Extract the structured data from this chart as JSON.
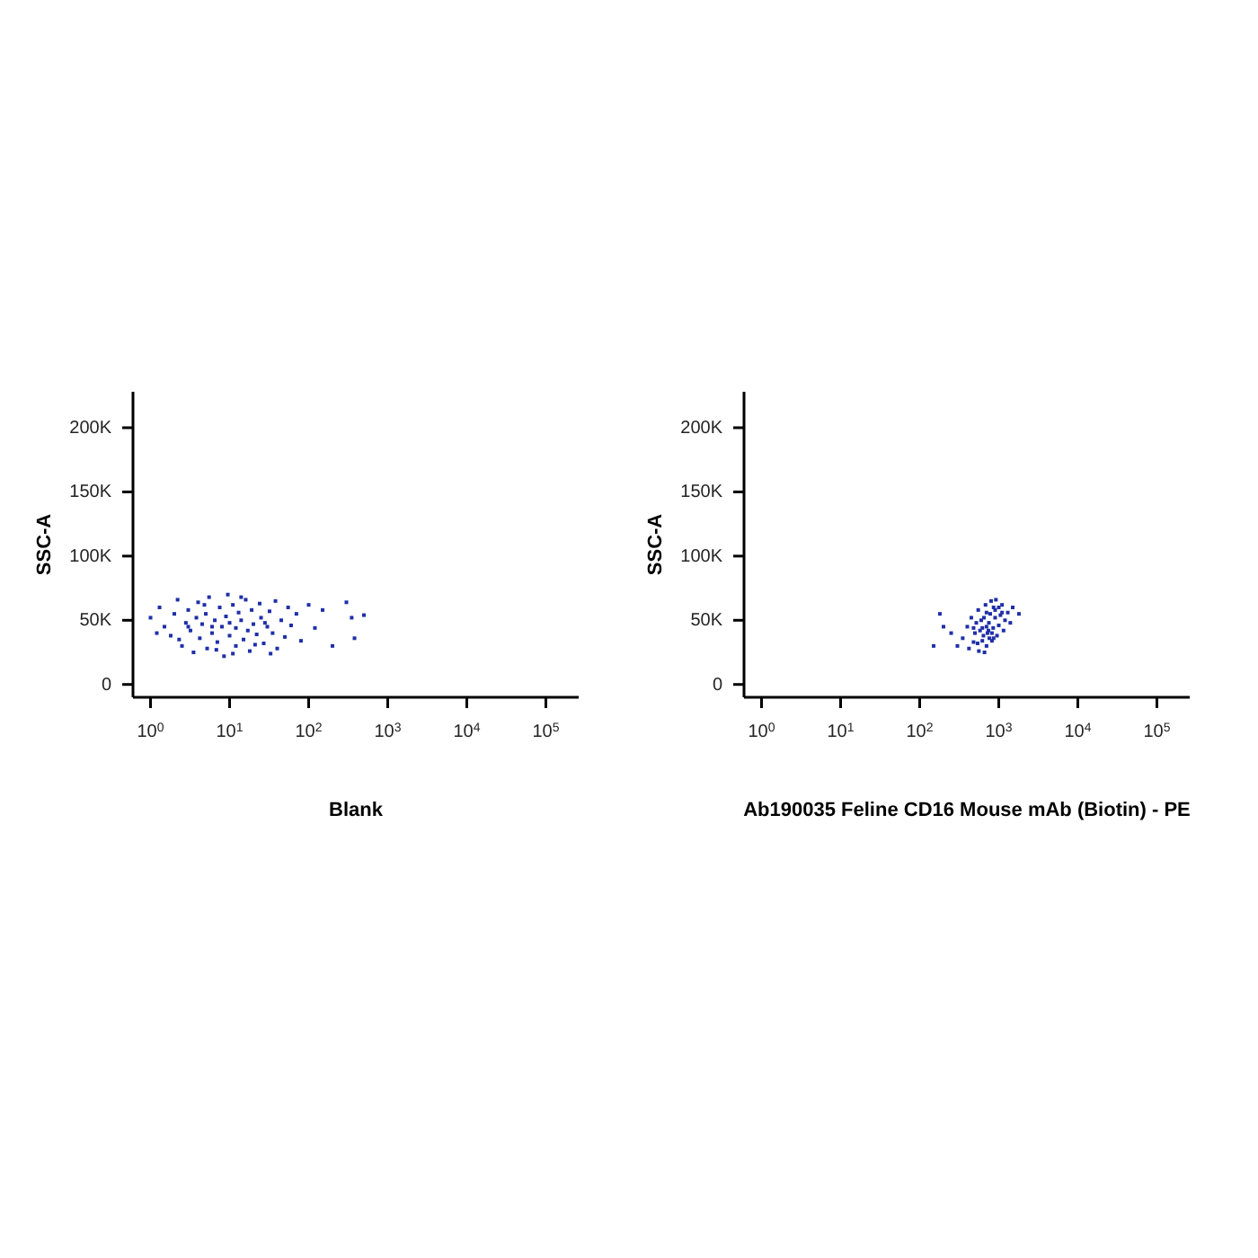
{
  "chart_data": [
    {
      "type": "scatter",
      "xlabel": "Blank",
      "ylabel": "SSC-A",
      "log": "x",
      "marker": "square",
      "xlim": [
        0.6,
        260000
      ],
      "ylim": [
        -10000,
        228000
      ],
      "xticks": [
        {
          "value": 1,
          "label": "10$^{0}$"
        },
        {
          "value": 10,
          "label": "10$^{1}$"
        },
        {
          "value": 100,
          "label": "10$^{2}$"
        },
        {
          "value": 1000,
          "label": "10$^{3}$"
        },
        {
          "value": 10000,
          "label": "10$^{4}$"
        },
        {
          "value": 100000,
          "label": "10$^{5}$"
        }
      ],
      "yticks": [
        {
          "value": 0,
          "label": "0"
        },
        {
          "value": 50000,
          "label": "50K"
        },
        {
          "value": 100000,
          "label": "100K"
        },
        {
          "value": 150000,
          "label": "150K"
        },
        {
          "value": 200000,
          "label": "200K"
        }
      ],
      "series": [
        {
          "color": "#1f2fa8",
          "x": [
            1,
            1.3,
            1.5,
            1.8,
            2,
            2.2,
            2.5,
            2.8,
            3,
            3.2,
            3.5,
            3.8,
            4,
            4.2,
            4.5,
            5,
            5.2,
            5.5,
            6,
            6.5,
            7,
            7.5,
            8,
            8.5,
            9,
            10,
            10,
            11,
            12,
            12,
            13,
            14,
            15,
            16,
            17,
            18,
            19,
            20,
            22,
            24,
            25,
            27,
            30,
            32,
            35,
            38,
            40,
            45,
            50,
            55,
            60,
            70,
            80,
            100,
            120,
            150,
            200,
            300,
            350,
            500,
            380,
            1.2,
            2.3,
            4.8,
            6.8,
            9.5,
            11,
            14,
            21,
            28,
            33,
            6,
            3
          ],
          "values": [
            52000,
            60000,
            45000,
            38000,
            55000,
            66000,
            30000,
            48000,
            58000,
            42000,
            25000,
            52000,
            64000,
            36000,
            47000,
            55000,
            28000,
            68000,
            40000,
            50000,
            33000,
            60000,
            45000,
            22000,
            53000,
            48000,
            38000,
            62000,
            44000,
            30000,
            56000,
            50000,
            35000,
            66000,
            42000,
            26000,
            58000,
            47000,
            39000,
            63000,
            52000,
            32000,
            45000,
            57000,
            40000,
            65000,
            28000,
            50000,
            37000,
            60000,
            46000,
            55000,
            34000,
            62000,
            44000,
            58000,
            30000,
            64000,
            52000,
            54000,
            36000,
            40000,
            35000,
            62000,
            27000,
            70000,
            24000,
            68000,
            31000,
            48000,
            24000,
            45000,
            45000
          ]
        }
      ]
    },
    {
      "type": "scatter",
      "xlabel": "Ab190035 Feline CD16 Mouse mAb (Biotin) - PE",
      "ylabel": "SSC-A",
      "log": "x",
      "marker": "square",
      "xlim": [
        0.6,
        260000
      ],
      "ylim": [
        -10000,
        228000
      ],
      "xticks": [
        {
          "value": 1,
          "label": "10$^{0}$"
        },
        {
          "value": 10,
          "label": "10$^{1}$"
        },
        {
          "value": 100,
          "label": "10$^{2}$"
        },
        {
          "value": 1000,
          "label": "10$^{3}$"
        },
        {
          "value": 10000,
          "label": "10$^{4}$"
        },
        {
          "value": 100000,
          "label": "10$^{5}$"
        }
      ],
      "yticks": [
        {
          "value": 0,
          "label": "0"
        },
        {
          "value": 50000,
          "label": "50K"
        },
        {
          "value": 100000,
          "label": "100K"
        },
        {
          "value": 150000,
          "label": "150K"
        },
        {
          "value": 200000,
          "label": "200K"
        }
      ],
      "series": [
        {
          "color": "#1f2fa8",
          "x": [
            250,
            300,
            350,
            400,
            420,
            450,
            480,
            500,
            520,
            550,
            560,
            620,
            650,
            680,
            700,
            720,
            750,
            780,
            800,
            820,
            850,
            900,
            950,
            1000,
            1050,
            1100,
            1150,
            1200,
            1300,
            1400,
            1500,
            150,
            180,
            200,
            1800,
            580,
            640,
            760,
            860,
            920,
            700,
            660,
            540,
            480,
            600,
            740,
            820,
            900,
            1000,
            1100,
            620,
            700,
            860
          ],
          "values": [
            40000,
            30000,
            36000,
            45000,
            28000,
            52000,
            33000,
            40000,
            48000,
            58000,
            26000,
            44000,
            52000,
            62000,
            30000,
            40000,
            48000,
            55000,
            65000,
            34000,
            44000,
            58000,
            38000,
            46000,
            54000,
            62000,
            42000,
            50000,
            56000,
            48000,
            60000,
            30000,
            55000,
            45000,
            55000,
            42000,
            38000,
            36000,
            60000,
            66000,
            45000,
            25000,
            32000,
            44000,
            50000,
            42000,
            40000,
            52000,
            60000,
            56000,
            34000,
            56000,
            36000
          ]
        }
      ]
    }
  ]
}
